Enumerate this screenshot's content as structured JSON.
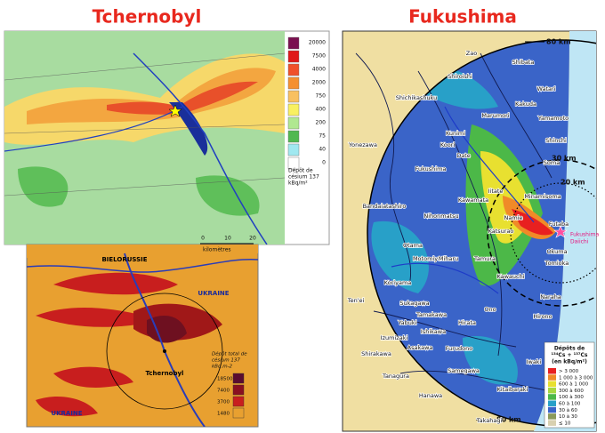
{
  "left": {
    "title": "Tchernobyl",
    "top_map": {
      "legend_values": [
        "20000",
        "7500",
        "4000",
        "2000",
        "750",
        "400",
        "200",
        "75",
        "40",
        "0"
      ],
      "legend_title": [
        "Dépôt de",
        "césium 137",
        "kBq/m²"
      ],
      "scale": [
        "0",
        "10",
        "20"
      ],
      "scale_unit": "kilomètres"
    },
    "bottom_map": {
      "labels": [
        "BIELORUSSIE",
        "UKRAINE",
        "UKRAINE",
        "Tchernobyl"
      ],
      "legend_title": [
        "Dépôt total de",
        "césium 137",
        "kBq.m-2"
      ],
      "legend_values": [
        "18500",
        "7400",
        "3700",
        "1480"
      ]
    }
  },
  "right": {
    "title": "Fukushima",
    "rings": [
      "80 km",
      "30 km",
      "20 km",
      "80 km"
    ],
    "plant": [
      "Fukushima",
      "Daiichi"
    ],
    "places": [
      "Zao",
      "Shiroishi",
      "Shibata",
      "Watari",
      "Shichikashuku",
      "Kakuda",
      "Marumori",
      "Yamamoto",
      "Kunimi",
      "Koori",
      "Yonezawa",
      "Shinchi",
      "Date",
      "Soma",
      "Fukushima",
      "Iitate",
      "Kawamata",
      "Minamisoma",
      "Bandaiatashiro",
      "Nihonmatsu",
      "Namie",
      "Katsurao",
      "Futaba",
      "Otama",
      "Motomiya",
      "Miharu",
      "Tamura",
      "Okuma",
      "Tomioka",
      "Kawauchi",
      "Koriyama",
      "Naraha",
      "Ten'ei",
      "Sukagawa",
      "Ono",
      "Hirono",
      "Tamakawa",
      "Yabuki",
      "Hirata",
      "Ishikawa",
      "Izumizaki",
      "Asakawa",
      "Furudono",
      "Iwaki",
      "Shirakawa",
      "Tanagura",
      "Samegawa",
      "Hanawa",
      "Kitaibaraki",
      "Takahagi"
    ],
    "legend_title": [
      "Dépôts de",
      "¹³⁴Cs + ¹³⁷Cs",
      "(en kBq/m²)"
    ],
    "legend": [
      "> 3 000",
      "1 000 à 3 000",
      "600 à 1 000",
      "300 à 600",
      "100 à 300",
      "60 à 100",
      "30 à 60",
      "10 à 30",
      "≤ 10"
    ]
  }
}
